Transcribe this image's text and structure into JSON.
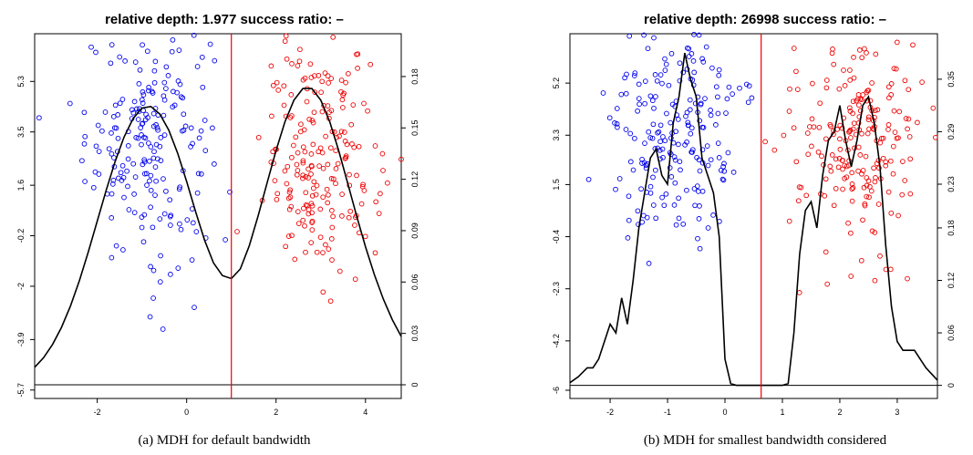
{
  "chart_data": [
    {
      "type": "scatter",
      "title": "relative depth:  1.977 success ratio:  –",
      "caption": "(a)  MDH for default bandwidth",
      "x_ticks": [
        "-2",
        "0",
        "2",
        "4"
      ],
      "x_tick_values": [
        -2,
        0,
        2,
        4
      ],
      "xlim": [
        -3.4,
        4.8
      ],
      "y_left_ticks": [
        "-5.7",
        "-3.9",
        "-2",
        "-0.2",
        "1.6",
        "3.5",
        "5.3"
      ],
      "y_left_tick_values": [
        -5.7,
        -3.9,
        -2.0,
        -0.2,
        1.6,
        3.5,
        5.3
      ],
      "ylim_left": [
        -6.0,
        7.0
      ],
      "y_right_ticks": [
        "0",
        "0.03",
        "0.06",
        "0.09",
        "0.12",
        "0.15",
        "0.18"
      ],
      "y_right_tick_values": [
        0,
        0.03,
        0.06,
        0.09,
        0.12,
        0.15,
        0.18
      ],
      "ylim_right": [
        -0.008,
        0.205
      ],
      "split_x": 1.0,
      "density": {
        "x": [
          -3.4,
          -3.2,
          -3.0,
          -2.8,
          -2.6,
          -2.4,
          -2.2,
          -2.0,
          -1.8,
          -1.6,
          -1.4,
          -1.2,
          -1.0,
          -0.8,
          -0.6,
          -0.4,
          -0.2,
          0.0,
          0.2,
          0.4,
          0.6,
          0.8,
          1.0,
          1.2,
          1.4,
          1.6,
          1.8,
          2.0,
          2.2,
          2.4,
          2.6,
          2.8,
          3.0,
          3.2,
          3.4,
          3.6,
          3.8,
          4.0,
          4.2,
          4.4,
          4.6,
          4.8
        ],
        "y": [
          0.0102,
          0.0158,
          0.0235,
          0.0335,
          0.0459,
          0.0607,
          0.0775,
          0.0955,
          0.1135,
          0.1303,
          0.1446,
          0.1554,
          0.1616,
          0.1625,
          0.1581,
          0.1487,
          0.1351,
          0.1187,
          0.1011,
          0.0845,
          0.0712,
          0.0638,
          0.062,
          0.0676,
          0.0811,
          0.0987,
          0.1179,
          0.1368,
          0.1536,
          0.1662,
          0.173,
          0.173,
          0.1662,
          0.1536,
          0.1368,
          0.1179,
          0.0987,
          0.0806,
          0.0642,
          0.05,
          0.038,
          0.0282
        ]
      },
      "series": [
        {
          "color": "#0000ee",
          "n": 210,
          "x_mean": -0.85,
          "x_sd": 0.7,
          "y_mean": 3.2,
          "y_sd": 2.2
        },
        {
          "color": "#ee0000",
          "n": 210,
          "x_mean": 3.0,
          "x_sd": 0.65,
          "y_mean": 2.6,
          "y_sd": 2.1
        }
      ],
      "grid": false
    },
    {
      "type": "scatter",
      "title": "relative depth:  26998 success ratio:  –",
      "caption": "(b)  MDH for smallest bandwidth considered",
      "x_ticks": [
        "-2",
        "-1",
        "0",
        "1",
        "2",
        "3"
      ],
      "x_tick_values": [
        -2,
        -1,
        0,
        1,
        2,
        3
      ],
      "xlim": [
        -2.7,
        3.7
      ],
      "y_left_ticks": [
        "-6",
        "-4.2",
        "-2.3",
        "-0.4",
        "1.5",
        "3.3",
        "5.2"
      ],
      "y_left_tick_values": [
        -6.0,
        -4.2,
        -2.3,
        -0.4,
        1.5,
        3.3,
        5.2
      ],
      "ylim_left": [
        -6.3,
        7.0
      ],
      "y_right_ticks": [
        "0",
        "0.06",
        "0.12",
        "0.18",
        "0.23",
        "0.29",
        "0.35"
      ],
      "y_right_tick_values": [
        0,
        0.06,
        0.12,
        0.18,
        0.23,
        0.29,
        0.35
      ],
      "ylim_right": [
        -0.015,
        0.402
      ],
      "split_x": 0.63,
      "density": {
        "x": [
          -2.7,
          -2.55,
          -2.4,
          -2.3,
          -2.2,
          -2.1,
          -2.0,
          -1.9,
          -1.8,
          -1.7,
          -1.6,
          -1.5,
          -1.4,
          -1.3,
          -1.2,
          -1.1,
          -1.0,
          -0.9,
          -0.8,
          -0.7,
          -0.6,
          -0.5,
          -0.4,
          -0.3,
          -0.2,
          -0.1,
          0.0,
          0.1,
          0.2,
          0.4,
          0.6,
          0.8,
          1.0,
          1.1,
          1.2,
          1.3,
          1.4,
          1.5,
          1.6,
          1.7,
          1.8,
          1.9,
          2.0,
          2.1,
          2.2,
          2.3,
          2.4,
          2.5,
          2.6,
          2.7,
          2.8,
          2.9,
          3.0,
          3.1,
          3.2,
          3.3,
          3.4,
          3.5,
          3.7
        ],
        "y": [
          0.003,
          0.01,
          0.02,
          0.02,
          0.03,
          0.05,
          0.07,
          0.06,
          0.1,
          0.07,
          0.12,
          0.18,
          0.22,
          0.26,
          0.27,
          0.24,
          0.23,
          0.3,
          0.33,
          0.38,
          0.35,
          0.33,
          0.26,
          0.24,
          0.22,
          0.17,
          0.03,
          0.002,
          0.0,
          0.0,
          0.0,
          0.0,
          0.0,
          0.002,
          0.06,
          0.15,
          0.2,
          0.21,
          0.18,
          0.24,
          0.28,
          0.29,
          0.32,
          0.28,
          0.25,
          0.28,
          0.32,
          0.33,
          0.3,
          0.25,
          0.16,
          0.09,
          0.05,
          0.04,
          0.04,
          0.04,
          0.03,
          0.02,
          0.006
        ]
      },
      "series": [
        {
          "color": "#0000ee",
          "n": 210,
          "x_mean": -0.85,
          "x_sd": 0.55,
          "y_mean": 3.3,
          "y_sd": 2.0
        },
        {
          "color": "#ee0000",
          "n": 210,
          "x_mean": 2.3,
          "x_sd": 0.55,
          "y_mean": 3.0,
          "y_sd": 1.9
        }
      ],
      "grid": false
    }
  ]
}
